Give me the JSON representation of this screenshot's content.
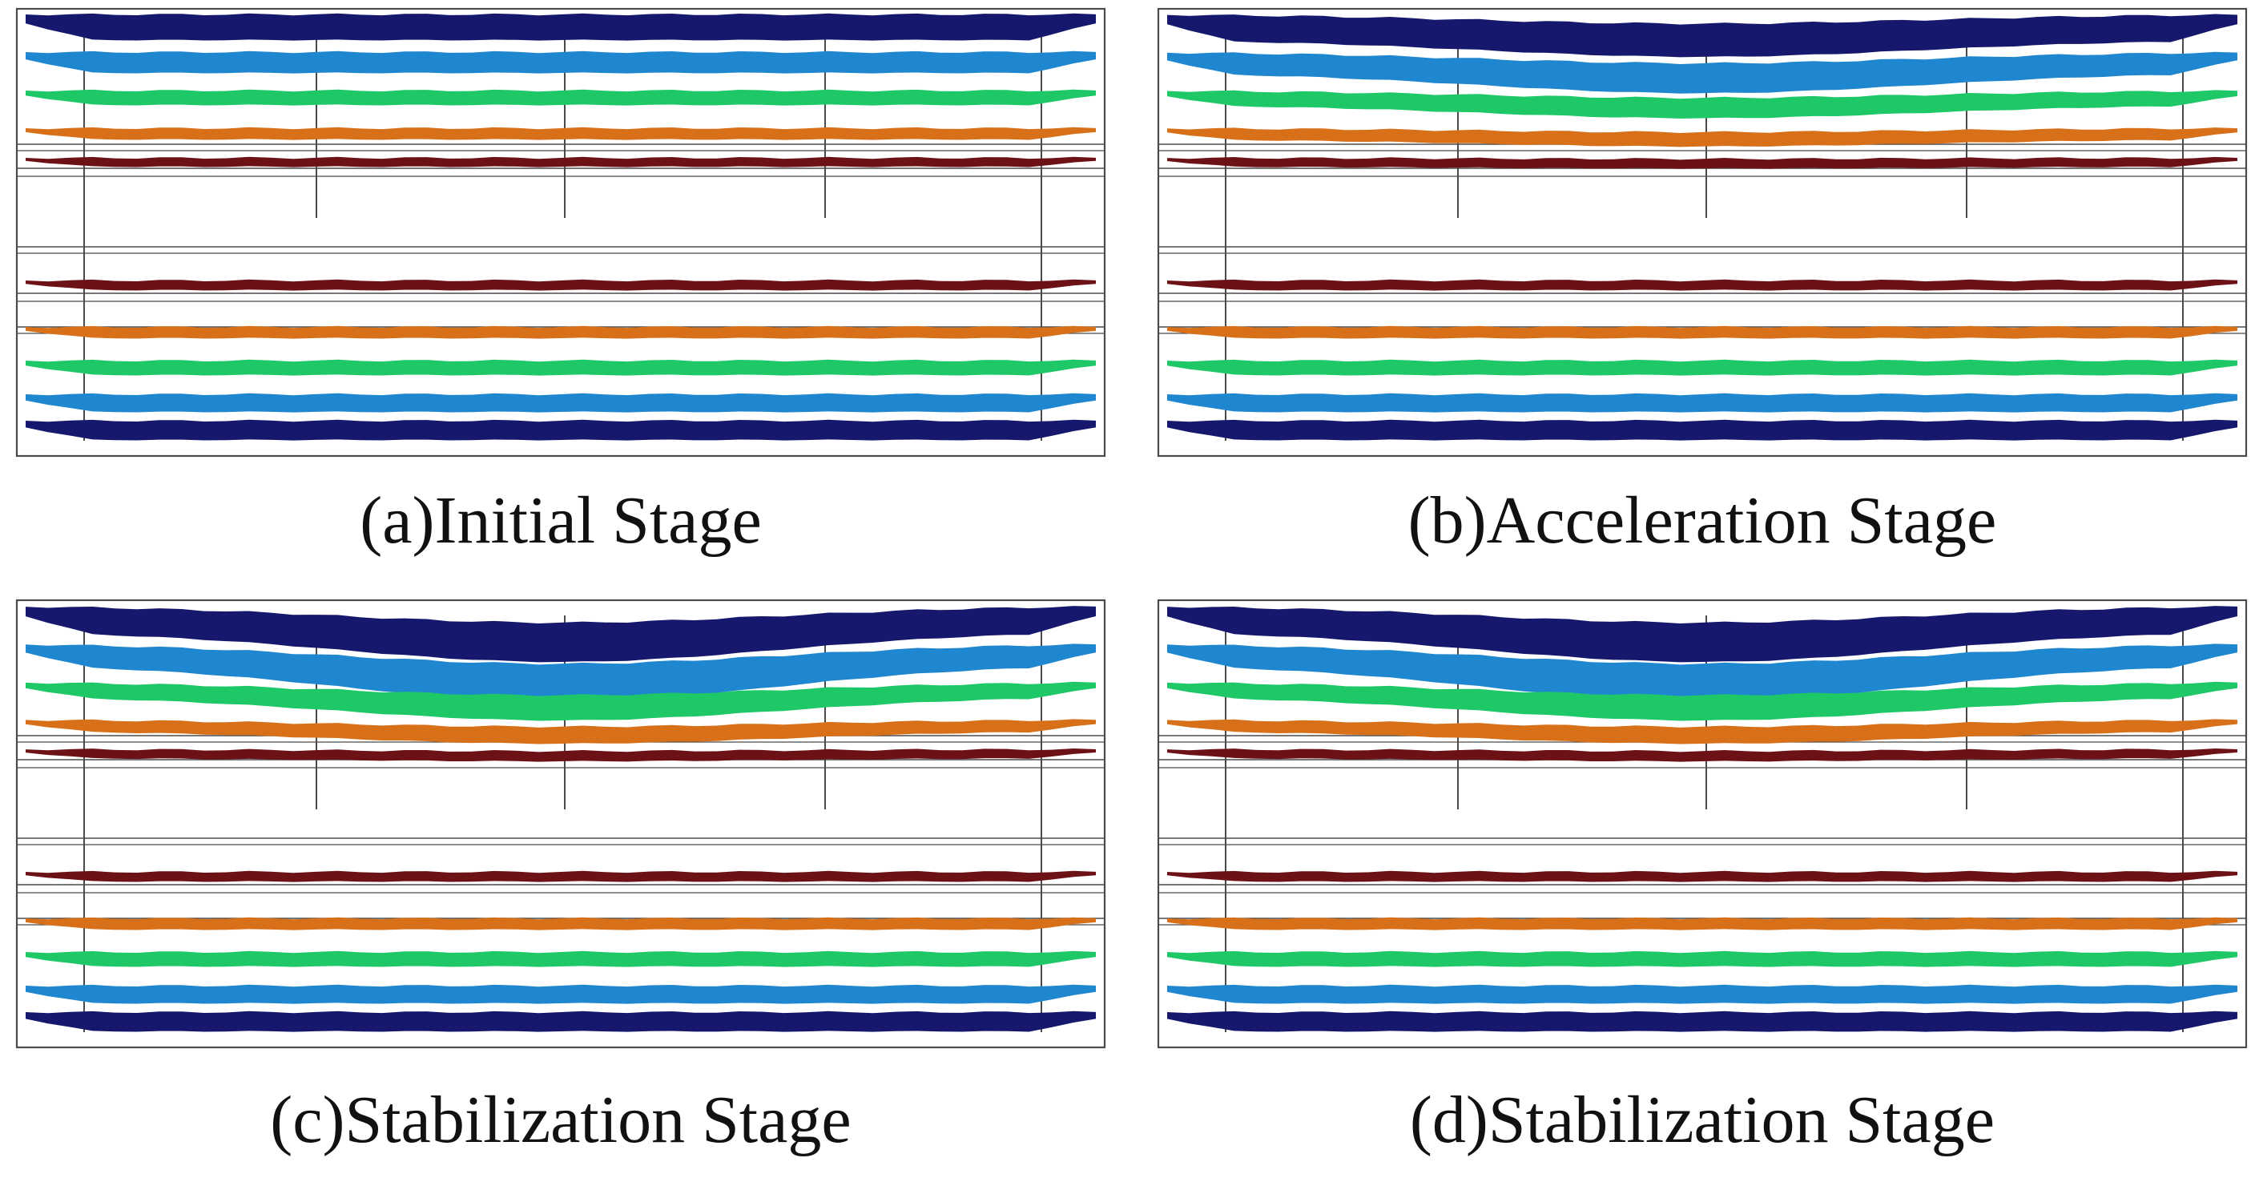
{
  "layer_colors": {
    "navy": "#16186e",
    "blue": "#1f86d0",
    "green": "#1fc867",
    "orange": "#d8701a",
    "maroon": "#6c1116"
  },
  "frame_color": "#4a4a4a",
  "panels": [
    {
      "caption": "(a)Initial Stage",
      "subsidence": 0.0
    },
    {
      "caption": "(b)Acceleration Stage",
      "subsidence": 0.55
    },
    {
      "caption": "(c)Stabilization Stage",
      "subsidence": 1.0
    },
    {
      "caption": "(d)Stabilization Stage",
      "subsidence": 1.0
    }
  ]
}
